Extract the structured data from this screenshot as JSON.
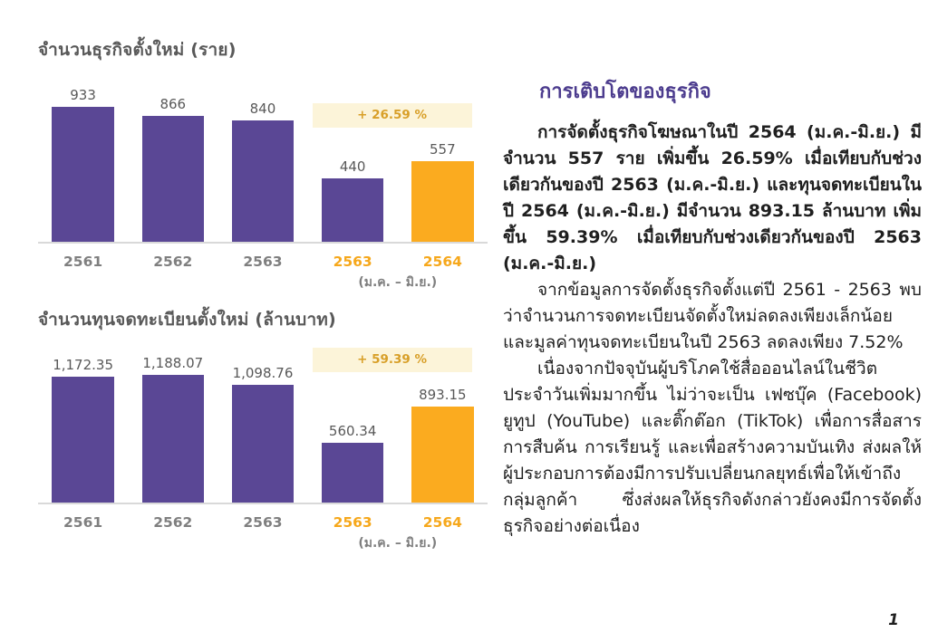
{
  "page": {
    "number": "1"
  },
  "colors": {
    "bar_purple": "#5a4795",
    "bar_orange": "#fbab1f",
    "annotation_bg": "#fcf4d9",
    "annotation_text": "#d89f28",
    "axis_label_gray": "#7f7f7f",
    "value_label_gray": "#595959",
    "year_highlight_orange": "#f6a81c",
    "heading_purple": "#4c3c8e",
    "baseline_gray": "#d9d9d9"
  },
  "chart_data": [
    {
      "type": "bar",
      "title": "จำนวนธุรกิจตั้งใหม่ (ราย)",
      "categories": [
        "2561",
        "2562",
        "2563",
        "2563",
        "2564"
      ],
      "values": [
        933,
        866,
        840,
        440,
        557
      ],
      "value_labels": [
        "933",
        "866",
        "840",
        "440",
        "557"
      ],
      "annotation": "+ 26.59 %",
      "x_sublabel": "(ม.ค. – มิ.ย.)",
      "xlabel": "",
      "ylabel": "",
      "ylim": [
        0,
        1000
      ],
      "grid": false,
      "legend": false,
      "highlight_last_bar": true,
      "highlight_category_indexes": [
        3,
        4
      ]
    },
    {
      "type": "bar",
      "title": "จำนวนทุนจดทะเบียนตั้งใหม่ (ล้านบาท)",
      "categories": [
        "2561",
        "2562",
        "2563",
        "2563",
        "2564"
      ],
      "values": [
        1172.35,
        1188.07,
        1098.76,
        560.34,
        893.15
      ],
      "value_labels": [
        "1,172.35",
        "1,188.07",
        "1,098.76",
        "560.34",
        "893.15"
      ],
      "annotation": "+ 59.39 %",
      "x_sublabel": "(ม.ค. – มิ.ย.)",
      "xlabel": "",
      "ylabel": "",
      "ylim": [
        0,
        1350
      ],
      "grid": false,
      "legend": false,
      "highlight_last_bar": true,
      "highlight_category_indexes": [
        3,
        4
      ]
    }
  ],
  "article": {
    "heading": "การเติบโตของธุรกิจ",
    "paragraphs": [
      "การจัดตั้งธุรกิจโฆษณาในปี 2564 (ม.ค.-มิ.ย.) มีจำนวน 557 ราย เพิ่มขึ้น 26.59% เมื่อเทียบกับช่วงเดียวกันของปี 2563 (ม.ค.-มิ.ย.) และทุนจดทะเบียนในปี 2564 (ม.ค.-มิ.ย.) มีจำนวน 893.15 ล้านบาท เพิ่มขึ้น 59.39% เมื่อเทียบกับช่วงเดียวกันของปี 2563 (ม.ค.-มิ.ย.)",
      "จากข้อมูลการจัดตั้งธุรกิจตั้งแต่ปี 2561 - 2563 พบว่าจำนวนการจดทะเบียนจัดตั้งใหม่ลดลงเพียงเล็กน้อย และมูลค่าทุนจดทะเบียนในปี 2563 ลดลงเพียง 7.52%",
      "เนื่องจากปัจจุบันผู้บริโภคใช้สื่อออนไลน์ในชีวิตประจำวันเพิ่มมากขึ้น ไม่ว่าจะเป็น เฟซบุ๊ค (Facebook) ยูทูป (YouTube) และติ๊กต๊อก (TikTok) เพื่อการสื่อสาร การสืบค้น การเรียนรู้ และเพื่อสร้างความบันเทิง ส่งผลให้ผู้ประกอบการต้องมีการปรับเปลี่ยนกลยุทธ์เพื่อให้เข้าถึงกลุ่มลูกค้า ซึ่งส่งผลให้ธุรกิจดังกล่าวยังคงมีการจัดตั้งธุรกิจอย่างต่อเนื่อง"
    ]
  }
}
